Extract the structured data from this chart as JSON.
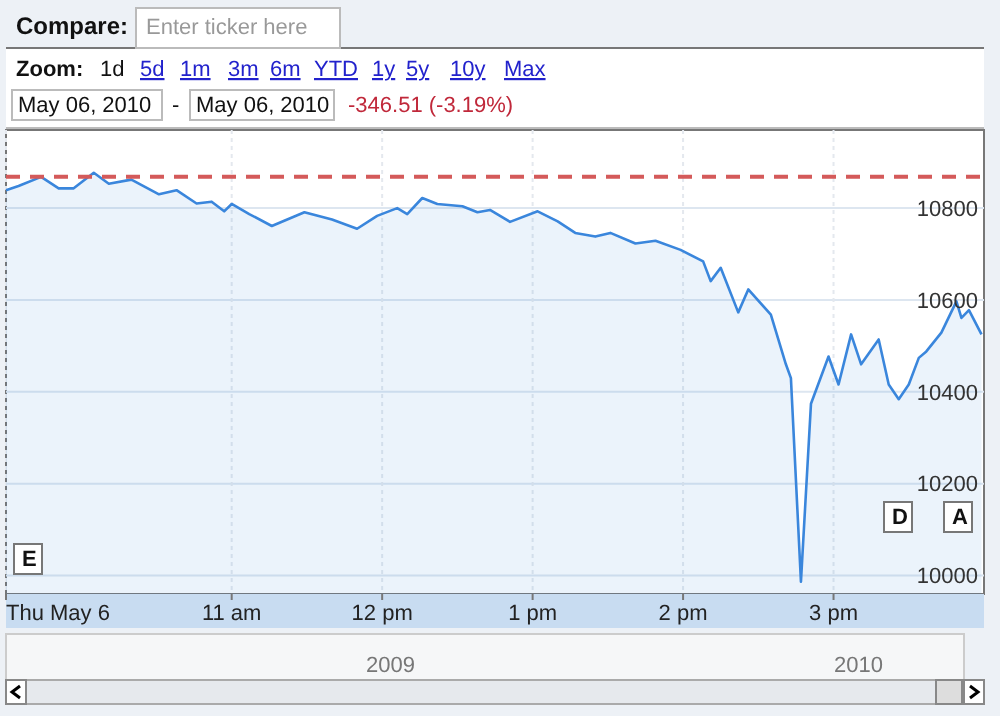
{
  "chart_data": {
    "type": "area",
    "xlim": [
      "2010-05-06T09:30",
      "2010-05-06T16:00"
    ],
    "ylim": [
      9960,
      10970
    ],
    "xticks": [
      {
        "value": "2010-05-06T09:30",
        "label": "Thu May 6"
      },
      {
        "value": "2010-05-06T11:00",
        "label": "11 am"
      },
      {
        "value": "2010-05-06T12:00",
        "label": "12 pm"
      },
      {
        "value": "2010-05-06T13:00",
        "label": "1 pm"
      },
      {
        "value": "2010-05-06T14:00",
        "label": "2 pm"
      },
      {
        "value": "2010-05-06T15:00",
        "label": "3 pm"
      }
    ],
    "yticks": [
      10000,
      10200,
      10400,
      10600,
      10800
    ],
    "grid": true,
    "marker": "none",
    "line_style": "solid",
    "x": [
      "2010-05-06T09:30",
      "2010-05-06T09:35",
      "2010-05-06T09:44",
      "2010-05-06T09:51",
      "2010-05-06T09:57",
      "2010-05-06T10:05",
      "2010-05-06T10:11",
      "2010-05-06T10:20",
      "2010-05-06T10:31",
      "2010-05-06T10:38",
      "2010-05-06T10:46",
      "2010-05-06T10:52",
      "2010-05-06T10:57",
      "2010-05-06T11:00",
      "2010-05-06T11:07",
      "2010-05-06T11:16",
      "2010-05-06T11:29",
      "2010-05-06T11:40",
      "2010-05-06T11:50",
      "2010-05-06T11:58",
      "2010-05-06T12:06",
      "2010-05-06T12:10",
      "2010-05-06T12:16",
      "2010-05-06T12:22",
      "2010-05-06T12:32",
      "2010-05-06T12:38",
      "2010-05-06T12:43",
      "2010-05-06T12:51",
      "2010-05-06T13:02",
      "2010-05-06T13:10",
      "2010-05-06T13:17",
      "2010-05-06T13:25",
      "2010-05-06T13:31",
      "2010-05-06T13:41",
      "2010-05-06T13:49",
      "2010-05-06T13:59",
      "2010-05-06T14:08",
      "2010-05-06T14:11",
      "2010-05-06T14:15",
      "2010-05-06T14:22",
      "2010-05-06T14:26",
      "2010-05-06T14:35",
      "2010-05-06T14:41",
      "2010-05-06T14:43",
      "2010-05-06T14:47",
      "2010-05-06T14:51",
      "2010-05-06T14:58",
      "2010-05-06T15:02",
      "2010-05-06T15:07",
      "2010-05-06T15:11",
      "2010-05-06T15:18",
      "2010-05-06T15:22",
      "2010-05-06T15:26",
      "2010-05-06T15:30",
      "2010-05-06T15:34",
      "2010-05-06T15:37",
      "2010-05-06T15:43",
      "2010-05-06T15:49",
      "2010-05-06T15:51",
      "2010-05-06T15:54",
      "2010-05-06T15:59"
    ],
    "series": [
      {
        "color": "#3a86dc",
        "values": [
          10839,
          10848,
          10868,
          10843,
          10843,
          10877,
          10853,
          10862,
          10830,
          10839,
          10810,
          10814,
          10793,
          10809,
          10787,
          10761,
          10791,
          10775,
          10755,
          10783,
          10800,
          10787,
          10822,
          10809,
          10804,
          10791,
          10796,
          10770,
          10793,
          10771,
          10746,
          10738,
          10746,
          10723,
          10729,
          10709,
          10684,
          10641,
          10670,
          10573,
          10623,
          10568,
          10460,
          10430,
          9987,
          10374,
          10477,
          10416,
          10525,
          10460,
          10514,
          10416,
          10384,
          10416,
          10474,
          10488,
          10529,
          10597,
          10561,
          10578,
          10525
        ]
      }
    ],
    "ref_lines": [
      {
        "axis": "y",
        "value": 10868,
        "color": "#d45a5a",
        "line_style": "dashed"
      }
    ],
    "annotations": [
      "Compare:",
      "Enter ticker here",
      "Zoom:",
      "1d",
      "5d",
      "1m",
      "3m",
      "6m",
      "YTD",
      "1y",
      "5y",
      "10y",
      "Max",
      "May 06, 2010",
      "-",
      "May 06, 2010",
      "-346.51 (-3.19%)",
      "E",
      "D",
      "A",
      "2009",
      "2010"
    ]
  }
}
